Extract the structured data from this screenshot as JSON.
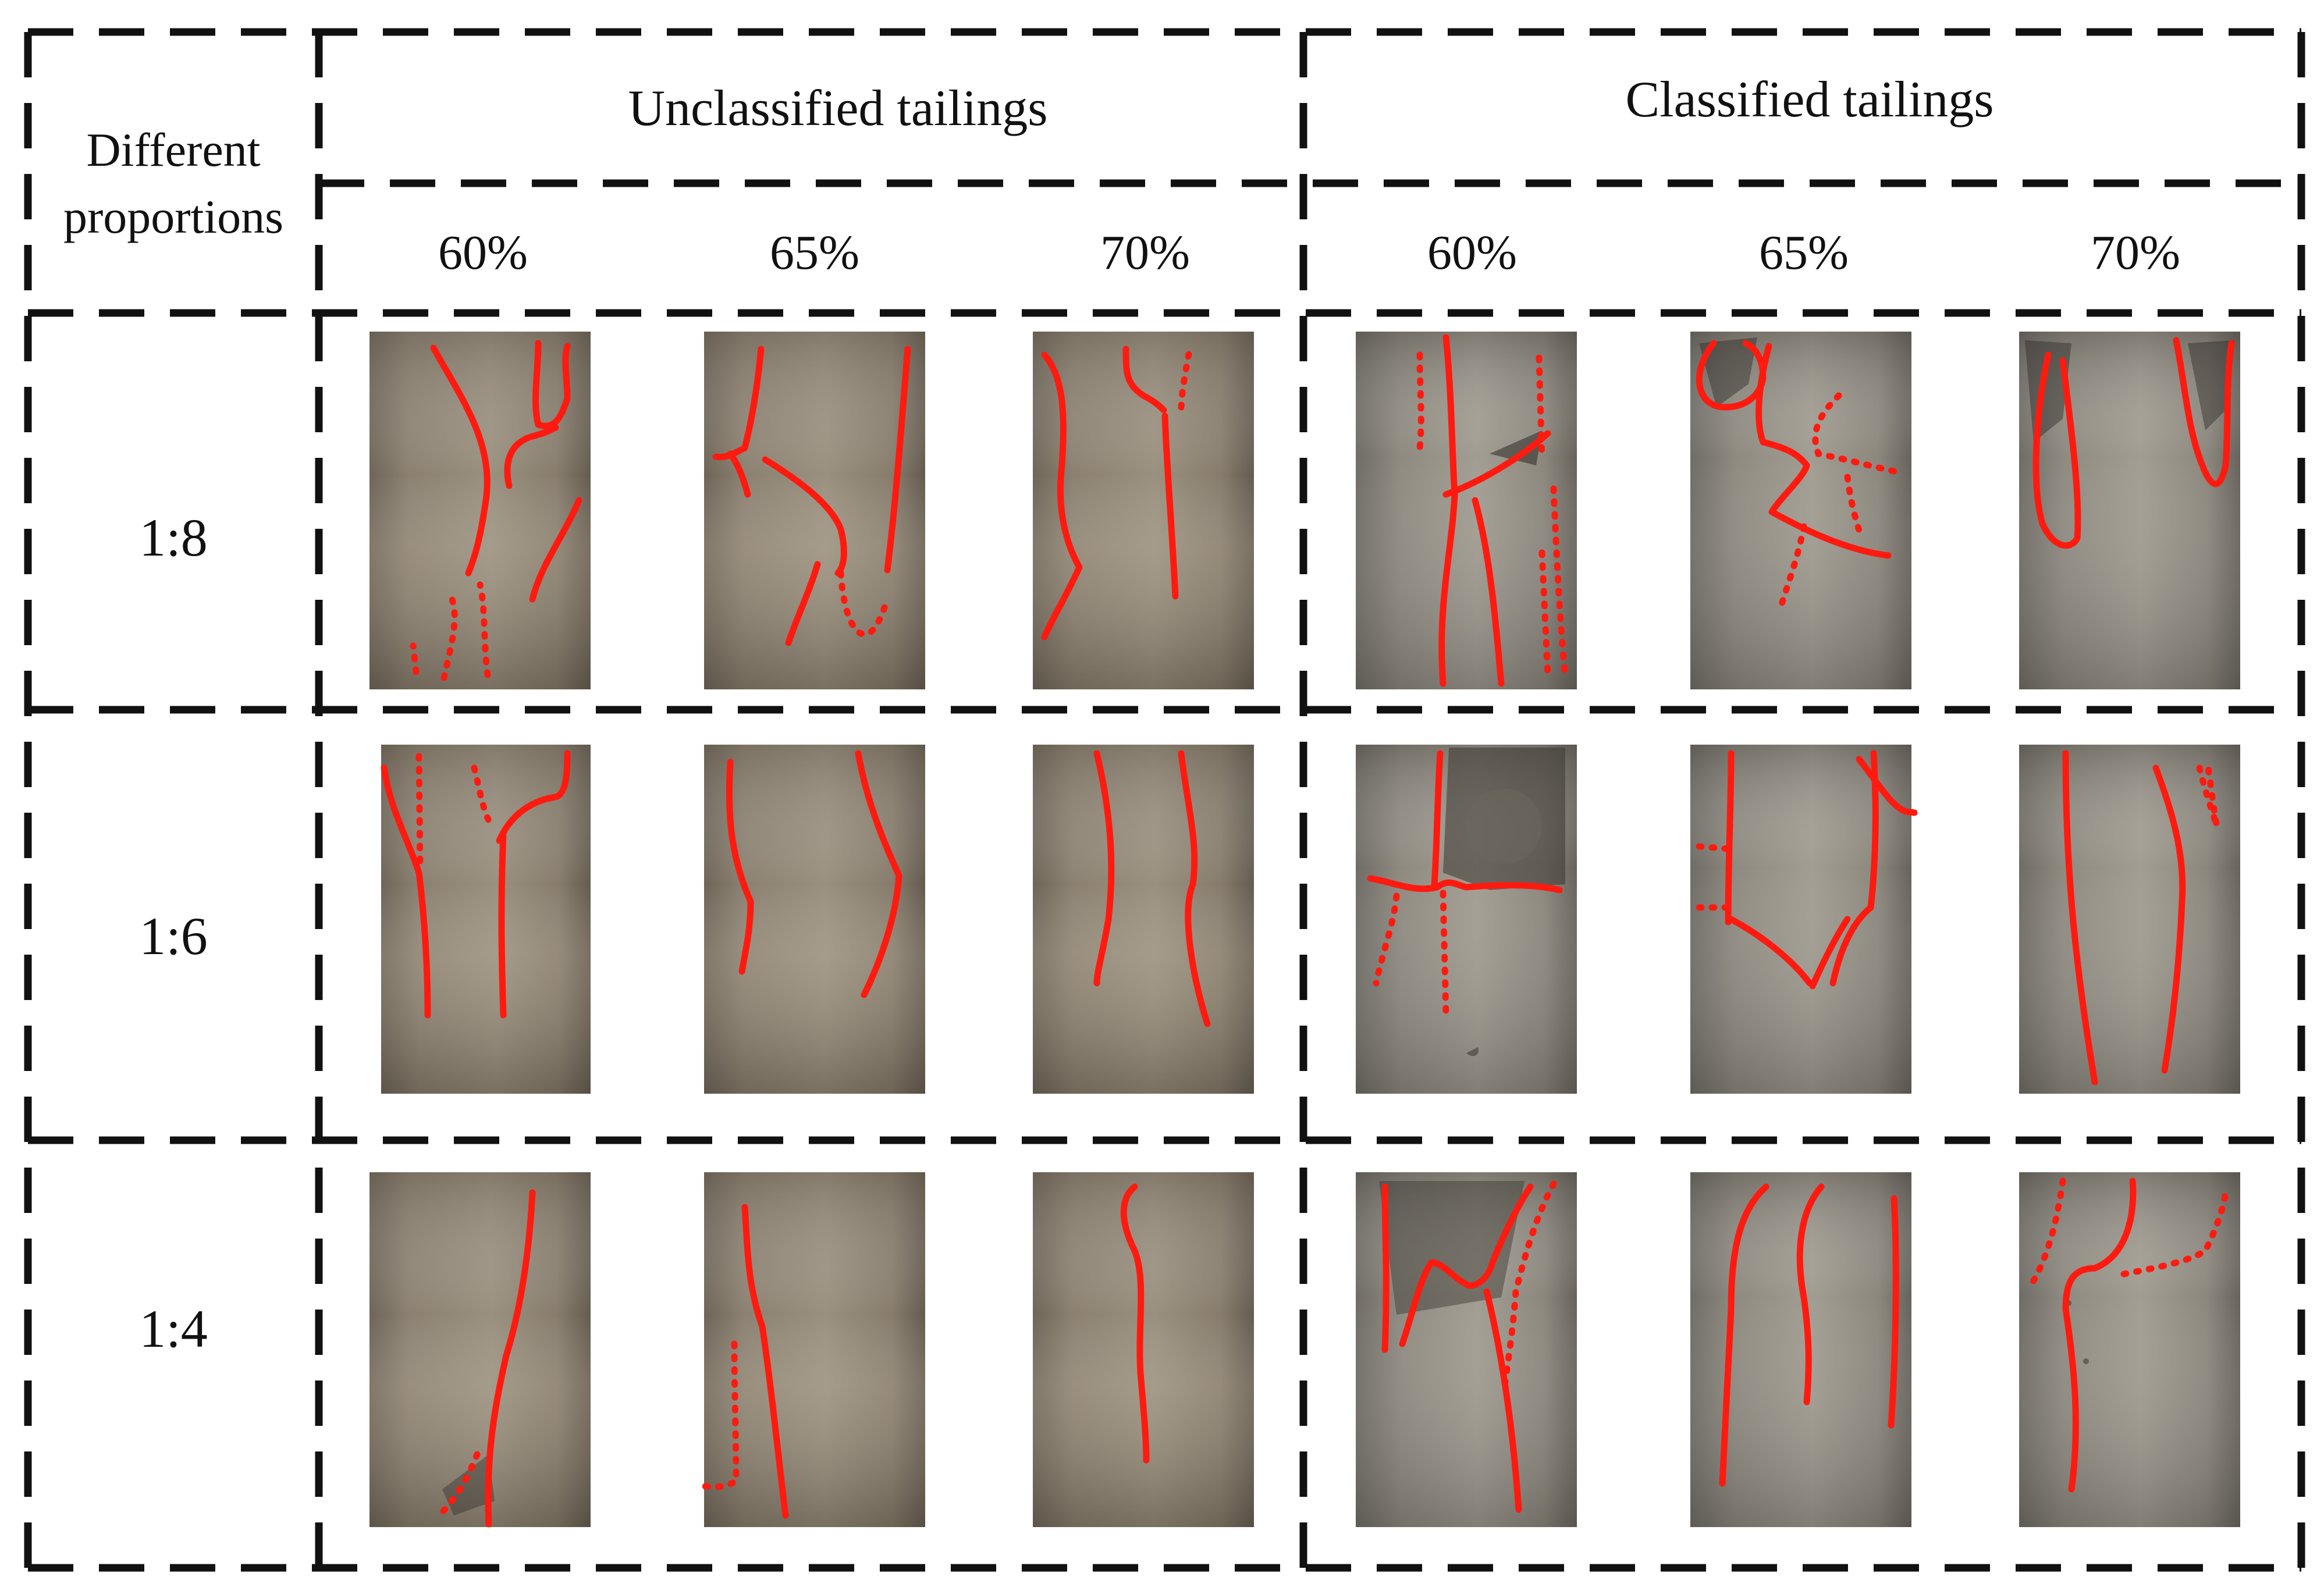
{
  "table": {
    "corner_label_line1": "Different",
    "corner_label_line2": "proportions",
    "group_headers": [
      "Unclassified tailings",
      "Classified tailings"
    ],
    "column_headers": [
      "60%",
      "65%",
      "70%",
      "60%",
      "65%",
      "70%"
    ],
    "row_headers": [
      "1:8",
      "1:6",
      "1:4"
    ]
  },
  "colors": {
    "crack_line": "#ff1a10",
    "border": "#111111",
    "unclassified_specimen": "#8d8373",
    "classified_specimen": "#8f8b82"
  }
}
